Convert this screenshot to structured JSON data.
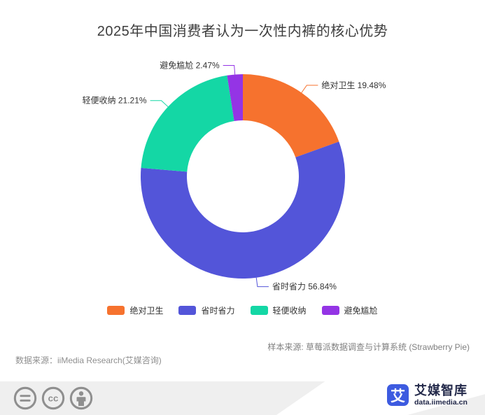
{
  "title": "2025年中国消费者认为一次性内裤的核心优势",
  "chart_data": {
    "type": "pie",
    "subtype": "donut",
    "title": "2025年中国消费者认为一次性内裤的核心优势",
    "categories": [
      "绝对卫生",
      "省时省力",
      "轻便收纳",
      "避免尴尬"
    ],
    "values": [
      19.48,
      56.84,
      21.21,
      2.47
    ],
    "unit": "%",
    "colors": [
      "#F6722E",
      "#5355D9",
      "#14D7A5",
      "#9434E5"
    ],
    "start_angle": "top",
    "direction": "clockwise",
    "legend_position": "bottom",
    "labels": [
      "绝对卫生 19.48%",
      "省时省力 56.84%",
      "轻便收纳 21.21%",
      "避免尴尬 2.47%"
    ]
  },
  "sources": {
    "sample": "样本来源: 草莓派数据调查与计算系统 (Strawberry Pie)",
    "data": "数据来源：iiMedia Research(艾媒咨询)"
  },
  "footer": {
    "license_icons": [
      "equals-icon",
      "cc-icon",
      "attribution-person-icon"
    ],
    "brand_mark": "艾",
    "brand_name": "艾媒智库",
    "brand_domain": "data.iimedia.cn",
    "brand_color": "#3D5BE0"
  }
}
